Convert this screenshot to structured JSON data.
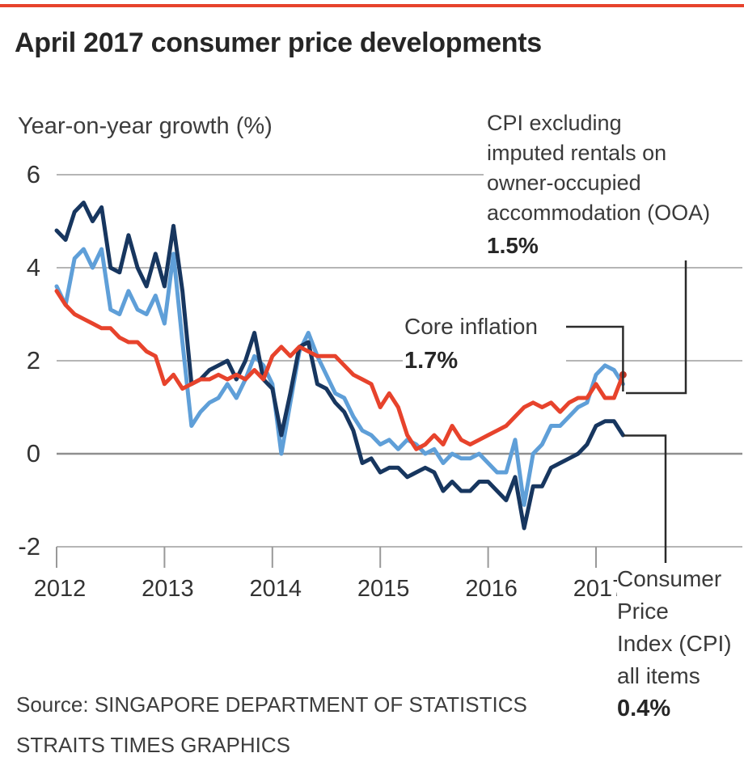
{
  "page": {
    "title": "April 2017 consumer price developments"
  },
  "axis": {
    "y_title": "Year-on-year growth (%)",
    "y_tick_labels": [
      "6",
      "4",
      "2",
      "0",
      "-2"
    ],
    "x_tick_labels": [
      "2012",
      "2013",
      "2014",
      "2015",
      "2016",
      "2017"
    ]
  },
  "annotations": {
    "ooa": {
      "lines": [
        "CPI excluding",
        "imputed rentals on",
        "owner-occupied",
        "accommodation (OOA)"
      ],
      "value": "1.5%"
    },
    "core": {
      "label": "Core inflation",
      "value": "1.7%"
    },
    "cpi": {
      "lines": [
        "Consumer",
        "Price",
        "Index (CPI)",
        "all items"
      ],
      "value": "0.4%"
    }
  },
  "source": {
    "line1": "Source: SINGAPORE DEPARTMENT OF STATISTICS",
    "line2": "STRAITS TIMES GRAPHICS"
  },
  "colors": {
    "navy": "#17365f",
    "blue": "#5f9fd8",
    "red": "#e7432c",
    "red_dot": "#bf3626",
    "grid": "#b5b5b5",
    "zero_grid": "#8f8f8f",
    "tick": "#999999",
    "callout": "#2b2b2b",
    "accent_top": "#e7432c"
  },
  "chart_data": {
    "type": "line",
    "title": "April 2017 consumer price developments",
    "ylabel": "Year-on-year growth (%)",
    "x_tick_labels": [
      "2012",
      "2013",
      "2014",
      "2015",
      "2016",
      "2017"
    ],
    "x_frequency": "monthly, Jan 2012 to Apr 2017",
    "y_ticks": [
      6,
      4,
      2,
      0,
      -2
    ],
    "ylim": [
      -2.6,
      6.4
    ],
    "grid": "horizontal",
    "legend_position": "inline-annotations",
    "series": [
      {
        "name": "CPI excluding imputed rentals on owner-occupied accommodation (OOA)",
        "key": "cpi_ex_ooa",
        "color": "#5f9fd8",
        "latest_value_label": "1.5%",
        "values": [
          3.6,
          3.2,
          4.2,
          4.4,
          4.0,
          4.4,
          3.1,
          3.0,
          3.5,
          3.1,
          3.0,
          3.4,
          2.8,
          4.3,
          2.4,
          0.6,
          0.9,
          1.1,
          1.2,
          1.5,
          1.2,
          1.6,
          2.1,
          1.9,
          1.5,
          0.0,
          1.1,
          2.2,
          2.6,
          2.1,
          1.7,
          1.3,
          1.2,
          0.8,
          0.5,
          0.4,
          0.2,
          0.3,
          0.1,
          0.3,
          0.2,
          0.0,
          0.1,
          -0.2,
          0.0,
          -0.1,
          -0.1,
          0.0,
          -0.2,
          -0.4,
          -0.4,
          0.3,
          -1.1,
          0.0,
          0.2,
          0.6,
          0.6,
          0.8,
          1.0,
          1.1,
          1.7,
          1.9,
          1.8,
          1.5
        ]
      },
      {
        "name": "Consumer Price Index (CPI) all items",
        "key": "cpi_all_items",
        "color": "#17365f",
        "latest_value_label": "0.4%",
        "values": [
          4.8,
          4.6,
          5.2,
          5.4,
          5.0,
          5.3,
          4.0,
          3.9,
          4.7,
          4.0,
          3.6,
          4.3,
          3.6,
          4.9,
          3.5,
          1.5,
          1.6,
          1.8,
          1.9,
          2.0,
          1.6,
          2.0,
          2.6,
          1.6,
          1.4,
          0.4,
          1.3,
          2.3,
          2.4,
          1.5,
          1.4,
          1.1,
          0.9,
          0.5,
          -0.2,
          -0.1,
          -0.4,
          -0.3,
          -0.3,
          -0.5,
          -0.4,
          -0.3,
          -0.4,
          -0.8,
          -0.6,
          -0.8,
          -0.8,
          -0.6,
          -0.6,
          -0.8,
          -1.0,
          -0.5,
          -1.6,
          -0.7,
          -0.7,
          -0.3,
          -0.2,
          -0.1,
          0.0,
          0.2,
          0.6,
          0.7,
          0.7,
          0.4
        ]
      },
      {
        "name": "Core inflation",
        "key": "core_inflation",
        "color": "#e7432c",
        "latest_value_label": "1.7%",
        "end_dot": true,
        "values": [
          3.5,
          3.2,
          3.0,
          2.9,
          2.8,
          2.7,
          2.7,
          2.5,
          2.4,
          2.4,
          2.2,
          2.1,
          1.5,
          1.7,
          1.4,
          1.5,
          1.6,
          1.6,
          1.7,
          1.6,
          1.7,
          1.6,
          1.8,
          1.6,
          2.1,
          2.3,
          2.1,
          2.3,
          2.2,
          2.1,
          2.1,
          2.1,
          1.9,
          1.7,
          1.6,
          1.5,
          1.0,
          1.3,
          1.0,
          0.4,
          0.1,
          0.2,
          0.4,
          0.2,
          0.6,
          0.3,
          0.2,
          0.3,
          0.4,
          0.5,
          0.6,
          0.8,
          1.0,
          1.1,
          1.0,
          1.1,
          0.9,
          1.1,
          1.2,
          1.2,
          1.5,
          1.2,
          1.2,
          1.7
        ]
      }
    ]
  }
}
